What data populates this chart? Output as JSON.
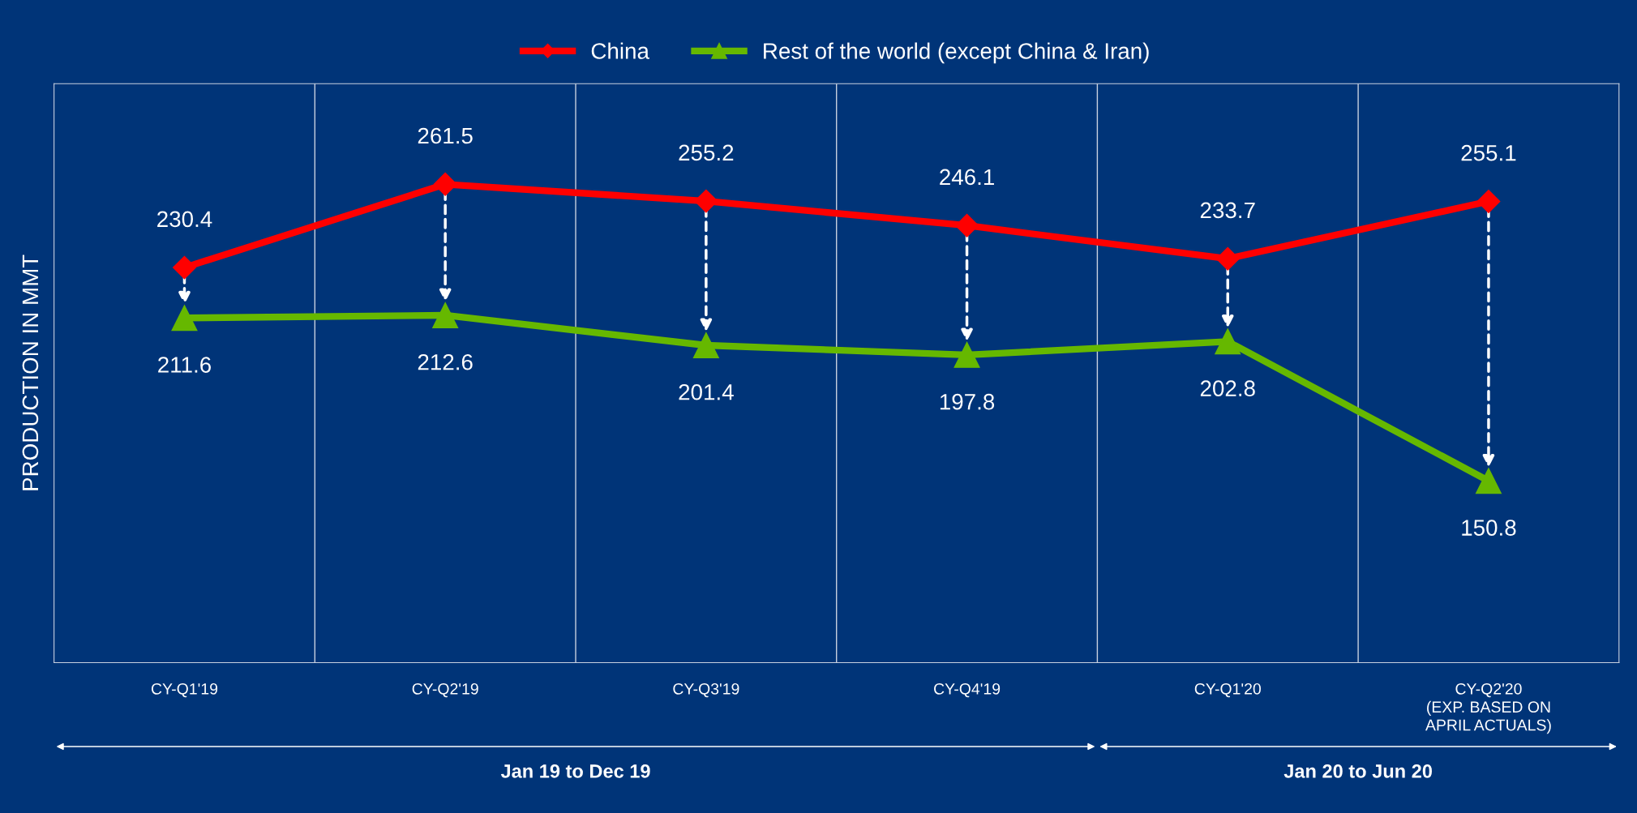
{
  "chart_data": {
    "type": "line",
    "ylabel": "PRODUCTION IN MMT",
    "categories": [
      "CY-Q1'19",
      "CY-Q2'19",
      "CY-Q3'19",
      "CY-Q4'19",
      "CY-Q1'20",
      "CY-Q2'20\n(EXP. BASED ON\nAPRIL ACTUALS)"
    ],
    "series": [
      {
        "name": "China",
        "color": "#ff0000",
        "marker": "diamond",
        "values": [
          230.4,
          261.5,
          255.2,
          246.1,
          233.7,
          255.1
        ]
      },
      {
        "name": "Rest of the world (except China & Iran)",
        "color": "#66b800",
        "marker": "triangle",
        "values": [
          211.6,
          212.6,
          201.4,
          197.8,
          202.8,
          150.8
        ]
      }
    ],
    "ylim": [
      83,
      299
    ],
    "tick_labels": "x",
    "data_labels": true,
    "grid": "x",
    "legend": "top",
    "annotations": [
      "Jan 19 to Dec 19",
      "Jan 20 to Jun 20"
    ]
  }
}
